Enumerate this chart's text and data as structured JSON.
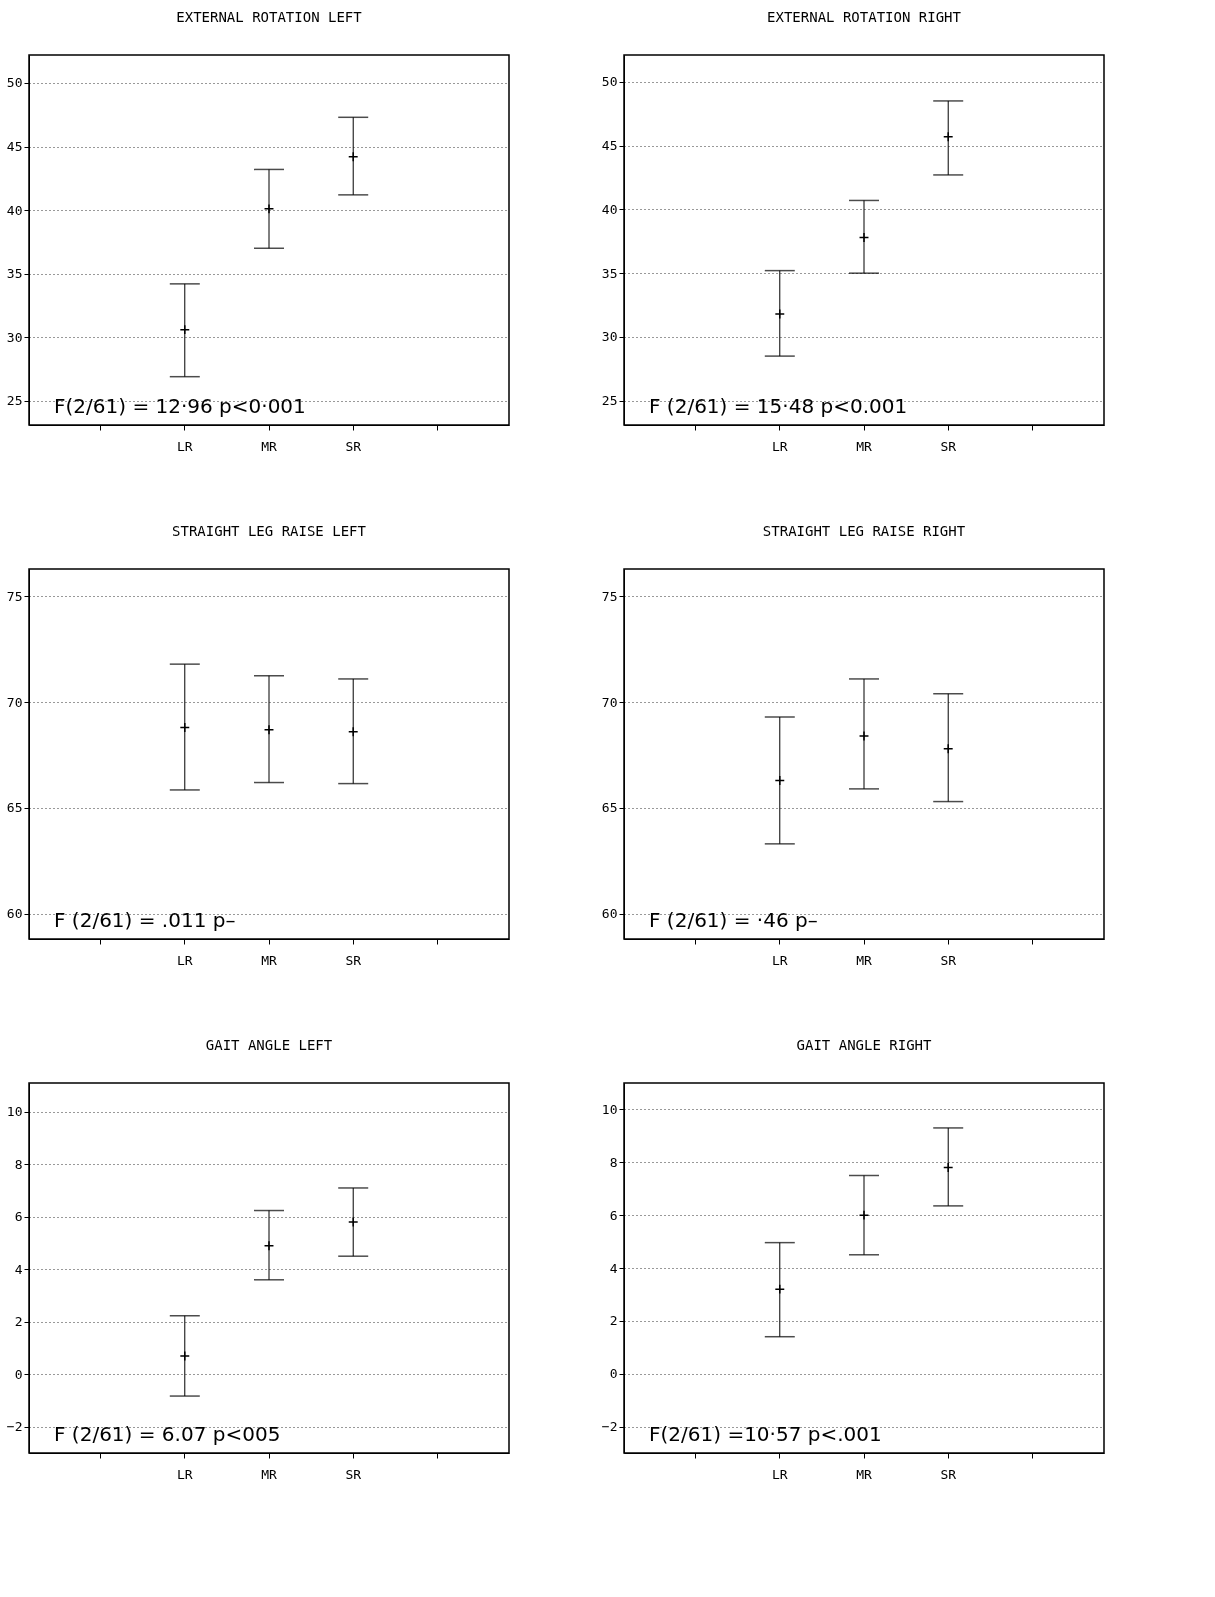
{
  "chart_data": [
    {
      "type": "scatter",
      "title": "EXTERNAL ROTATION LEFT",
      "categories": [
        null,
        "LR",
        "MR",
        "SR",
        null
      ],
      "values": [
        null,
        30.6,
        40.1,
        44.2,
        null
      ],
      "errors": [
        null,
        [
          26.9,
          34.2
        ],
        [
          37.0,
          43.2
        ],
        [
          41.2,
          47.3
        ],
        null
      ],
      "color": "#000000",
      "marker": "cross",
      "ylim": [
        23.1,
        52.2
      ],
      "yticks": [
        25,
        30,
        35,
        40,
        45,
        50
      ],
      "grid": "y",
      "annotations": [
        "F(2/61) = 12·96  p<0·001"
      ]
    },
    {
      "type": "scatter",
      "title": "EXTERNAL ROTATION RIGHT",
      "categories": [
        null,
        "LR",
        "MR",
        "SR",
        null
      ],
      "values": [
        null,
        31.8,
        37.8,
        45.7,
        null
      ],
      "errors": [
        null,
        [
          28.5,
          35.2
        ],
        [
          35.0,
          40.7
        ],
        [
          42.7,
          48.5
        ],
        null
      ],
      "color": "#000000",
      "marker": "cross",
      "ylim": [
        23.1,
        52.1
      ],
      "yticks": [
        25,
        30,
        35,
        40,
        45,
        50
      ],
      "grid": "y",
      "annotations": [
        "F (2/61) = 15·48  p<0.001"
      ]
    },
    {
      "type": "scatter",
      "title": "STRAIGHT LEG RAISE LEFT",
      "categories": [
        null,
        "LR",
        "MR",
        "SR",
        null
      ],
      "values": [
        null,
        68.8,
        68.7,
        68.6,
        null
      ],
      "errors": [
        null,
        [
          65.85,
          71.8
        ],
        [
          66.2,
          71.25
        ],
        [
          66.15,
          71.1
        ],
        null
      ],
      "color": "#000000",
      "marker": "cross",
      "ylim": [
        58.8,
        76.3
      ],
      "yticks": [
        60,
        65,
        70,
        75
      ],
      "grid": "y",
      "annotations": [
        "F (2/61) =  .011   p–"
      ]
    },
    {
      "type": "scatter",
      "title": "STRAIGHT LEG RAISE RIGHT",
      "categories": [
        null,
        "LR",
        "MR",
        "SR",
        null
      ],
      "values": [
        null,
        66.3,
        68.4,
        67.8,
        null
      ],
      "errors": [
        null,
        [
          63.3,
          69.3
        ],
        [
          65.9,
          71.1
        ],
        [
          65.3,
          70.4
        ],
        null
      ],
      "color": "#000000",
      "marker": "cross",
      "ylim": [
        58.8,
        76.3
      ],
      "yticks": [
        60,
        65,
        70,
        75
      ],
      "grid": "y",
      "annotations": [
        "F (2/61) =  ·46   p–"
      ]
    },
    {
      "type": "scatter",
      "title": "GAIT ANGLE LEFT",
      "categories": [
        null,
        "LR",
        "MR",
        "SR",
        null
      ],
      "values": [
        null,
        0.7,
        4.9,
        5.8,
        null
      ],
      "errors": [
        null,
        [
          -0.83,
          2.23
        ],
        [
          3.6,
          6.24
        ],
        [
          4.5,
          7.1
        ],
        null
      ],
      "color": "#000000",
      "marker": "cross",
      "ylim": [
        -3.0,
        11.1
      ],
      "yticks": [
        -2,
        0,
        2,
        4,
        6,
        8,
        10
      ],
      "grid": "y",
      "annotations": [
        "F (2/61) = 6.07      p<005"
      ]
    },
    {
      "type": "scatter",
      "title": "GAIT ANGLE RIGHT",
      "categories": [
        null,
        "LR",
        "MR",
        "SR",
        null
      ],
      "values": [
        null,
        3.2,
        6.0,
        7.8,
        null
      ],
      "errors": [
        null,
        [
          1.4,
          4.96
        ],
        [
          4.5,
          7.5
        ],
        [
          6.35,
          9.3
        ],
        null
      ],
      "color": "#000000",
      "marker": "cross",
      "ylim": [
        -3.0,
        11.0
      ],
      "yticks": [
        -2,
        0,
        2,
        4,
        6,
        8,
        10
      ],
      "grid": "y",
      "annotations": [
        "F(2/61) =10·57  p<.001"
      ]
    }
  ]
}
